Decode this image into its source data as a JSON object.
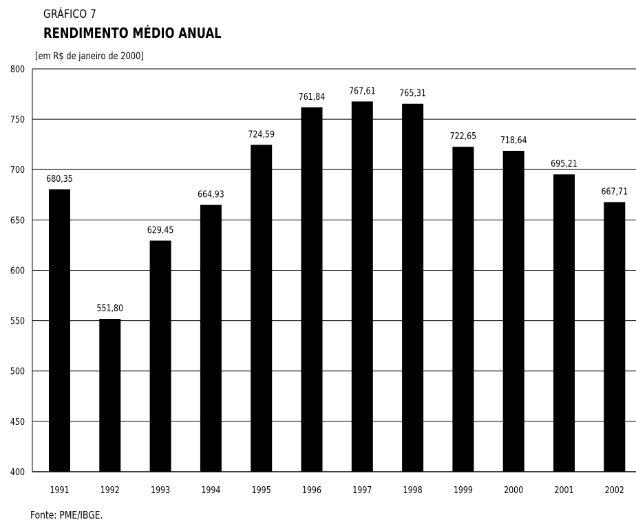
{
  "header": {
    "chart_number": "GRÁFICO 7",
    "title": "RENDIMENTO MÉDIO ANUAL",
    "unit": "[em R$ de janeiro de 2000]"
  },
  "footer": {
    "source": "Fonte: PME/IBGE."
  },
  "colors": {
    "bar": "#000000",
    "grid": "#000000",
    "background": "#ffffff"
  },
  "chart_data": {
    "type": "bar",
    "title": "RENDIMENTO MÉDIO ANUAL",
    "xlabel": "",
    "ylabel": "[em R$ de janeiro de 2000]",
    "categories": [
      "1991",
      "1992",
      "1993",
      "1994",
      "1995",
      "1996",
      "1997",
      "1998",
      "1999",
      "2000",
      "2001",
      "2002"
    ],
    "values": [
      680.35,
      551.8,
      629.45,
      664.93,
      724.59,
      761.84,
      767.61,
      765.31,
      722.65,
      718.64,
      695.21,
      667.71
    ],
    "value_labels": [
      "680,35",
      "551,80",
      "629,45",
      "664,93",
      "724,59",
      "761,84",
      "767,61",
      "765,31",
      "722,65",
      "718,64",
      "695,21",
      "667,71"
    ],
    "ylim": [
      400,
      800
    ],
    "yticks": [
      "400",
      "450",
      "500",
      "550",
      "600",
      "650",
      "700",
      "750",
      "800"
    ],
    "grid": true,
    "legend": "none"
  }
}
